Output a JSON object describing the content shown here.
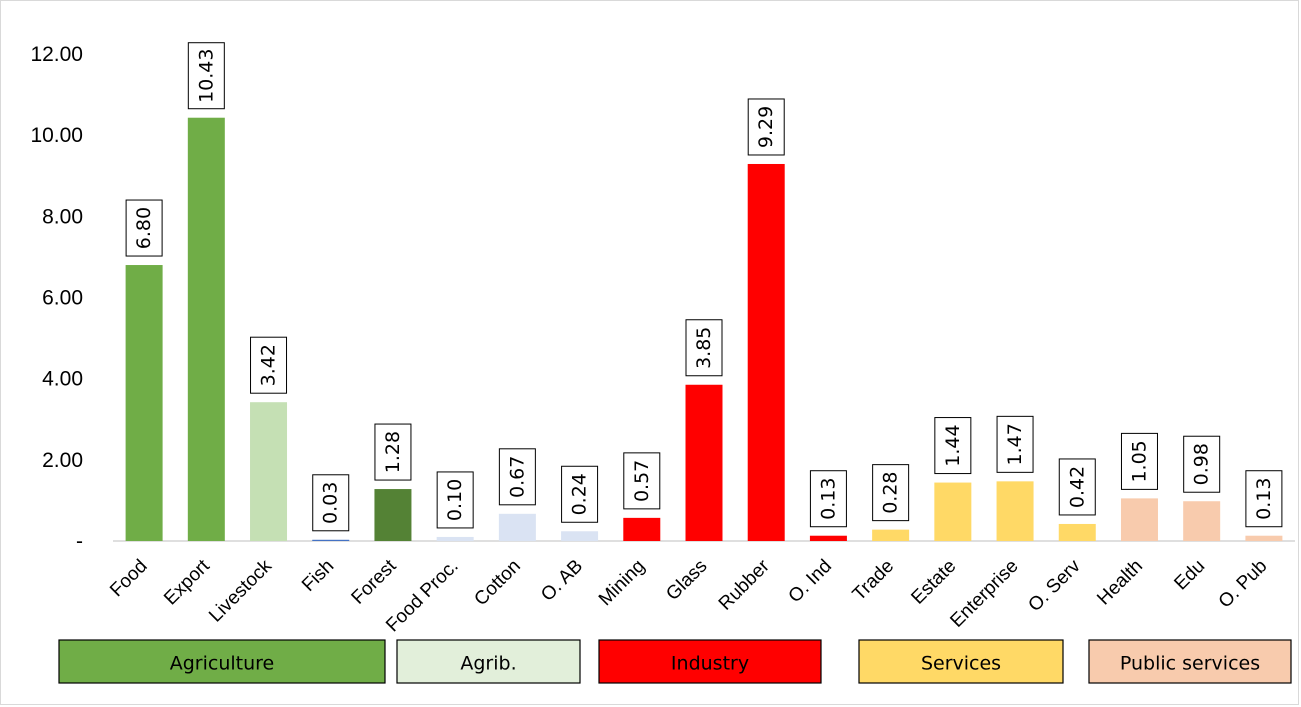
{
  "chart_data": {
    "type": "bar",
    "title": "",
    "xlabel": "",
    "ylabel": "",
    "ylim": [
      0,
      12
    ],
    "grid": false,
    "legend": "none",
    "y_ticks": [
      {
        "value": 0,
        "label": "-"
      },
      {
        "value": 2,
        "label": "2.00"
      },
      {
        "value": 4,
        "label": "4.00"
      },
      {
        "value": 6,
        "label": "6.00"
      },
      {
        "value": 8,
        "label": "8.00"
      },
      {
        "value": 10,
        "label": "10.00"
      },
      {
        "value": 12,
        "label": "12.00"
      }
    ],
    "categories": [
      "Food",
      "Export",
      "Livestock",
      "Fish",
      "Forest",
      "Food Proc.",
      "Cotton",
      "O. AB",
      "Mining",
      "Glass",
      "Rubber",
      "O. Ind",
      "Trade",
      "Estate",
      "Enterprise",
      "O. Serv",
      "Health",
      "Edu",
      "O. Pub"
    ],
    "values": [
      6.8,
      10.43,
      3.42,
      0.03,
      1.28,
      0.1,
      0.67,
      0.24,
      0.57,
      3.85,
      9.29,
      0.13,
      0.28,
      1.44,
      1.47,
      0.42,
      1.05,
      0.98,
      0.13
    ],
    "data_labels": [
      "6.80",
      "10.43",
      "3.42",
      "0.03",
      "1.28",
      "0.10",
      "0.67",
      "0.24",
      "0.57",
      "3.85",
      "9.29",
      "0.13",
      "0.28",
      "1.44",
      "1.47",
      "0.42",
      "1.05",
      "0.98",
      "0.13"
    ],
    "bar_colors": [
      "#70ad47",
      "#70ad47",
      "#c5e0b4",
      "#4472c4",
      "#548235",
      "#dae3f3",
      "#dae3f3",
      "#dae3f3",
      "#ff0000",
      "#ff0000",
      "#ff0000",
      "#ff0000",
      "#ffd966",
      "#ffd966",
      "#ffd966",
      "#ffd966",
      "#f8cbad",
      "#f8cbad",
      "#f8cbad"
    ],
    "groups": [
      {
        "label": "Agriculture",
        "color": "#70ad47"
      },
      {
        "label": "Agrib.",
        "color": "#e2efda"
      },
      {
        "label": "Industry",
        "color": "#ff0000"
      },
      {
        "label": "Services",
        "color": "#ffd966"
      },
      {
        "label": "Public services",
        "color": "#f8cbad"
      }
    ]
  }
}
